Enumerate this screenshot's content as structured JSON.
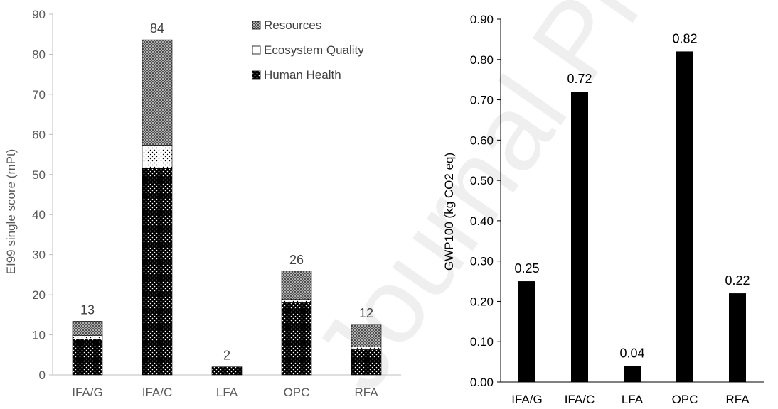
{
  "watermark": "Journal Pre-proof",
  "chart_data": [
    {
      "type": "bar",
      "stacked": true,
      "categories": [
        "IFA/G",
        "IFA/C",
        "LFA",
        "OPC",
        "RFA"
      ],
      "series": [
        {
          "name": "Human Health",
          "values": [
            8.9,
            51.5,
            2.0,
            18.0,
            6.3
          ],
          "pattern": "dots-on-black"
        },
        {
          "name": "Ecosystem Quality",
          "values": [
            0.9,
            5.8,
            0.0,
            0.9,
            0.7
          ],
          "pattern": "dots-on-white"
        },
        {
          "name": "Resources",
          "values": [
            3.6,
            26.3,
            0.0,
            7.0,
            5.6
          ],
          "pattern": "checker-grey"
        }
      ],
      "totals": [
        "13",
        "84",
        "2",
        "26",
        "12"
      ],
      "ylabel": "EI99 single score (mPt)",
      "ylim": [
        0,
        90
      ],
      "yticks": [
        "0",
        "10",
        "20",
        "30",
        "40",
        "50",
        "60",
        "70",
        "80",
        "90"
      ],
      "legend": [
        "Resources",
        "Ecosystem Quality",
        "Human Health"
      ],
      "legend_position": "top-right",
      "grid": false
    },
    {
      "type": "bar",
      "categories": [
        "IFA/G",
        "IFA/C",
        "LFA",
        "OPC",
        "RFA"
      ],
      "values": [
        0.25,
        0.72,
        0.04,
        0.82,
        0.22
      ],
      "labels": [
        "0.25",
        "0.72",
        "0.04",
        "0.82",
        "0.22"
      ],
      "ylabel": "GWP100 (kg CO2 eq)",
      "ylim": [
        0,
        0.9
      ],
      "yticks": [
        "0.00",
        "0.10",
        "0.20",
        "0.30",
        "0.40",
        "0.50",
        "0.60",
        "0.70",
        "0.80",
        "0.90"
      ],
      "color": "#000000",
      "grid": false
    }
  ]
}
